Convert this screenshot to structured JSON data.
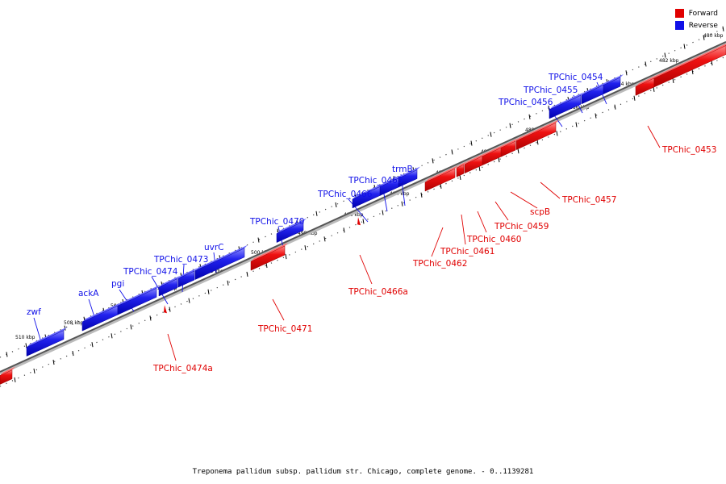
{
  "legend": {
    "forward_label": "Forward",
    "reverse_label": "Reverse",
    "forward_color": "#e00000",
    "reverse_color": "#1010e8"
  },
  "caption": "Treponema pallidum subsp. pallidum str. Chicago, complete genome. - 0..1139281",
  "scale": {
    "unit": "kbp",
    "ticks": [
      "480 kbp",
      "482 kbp",
      "484 kbp",
      "486 kbp",
      "488 kbp",
      "490 kbp",
      "492 kbp",
      "494 kbp",
      "496 kbp",
      "498 kbp",
      "500 kbp",
      "502 kbp",
      "504 kbp",
      "506 kbp",
      "508 kbp",
      "510 kbp"
    ]
  },
  "genes": {
    "reverse": [
      "TPChic_0454",
      "TPChic_0455",
      "TPChic_0456",
      "trmB",
      "TPChic_0465",
      "TPChic_0466",
      "TPChic_0470",
      "uvrC",
      "TPChic_0473",
      "TPChic_0474",
      "pgi",
      "ackA",
      "zwf"
    ],
    "forward": [
      "TPChic_0453",
      "TPChic_0457",
      "scpB",
      "TPChic_0459",
      "TPChic_0460",
      "TPChic_0461",
      "TPChic_0462",
      "TPChic_0466a",
      "TPChic_0471",
      "TPChic_0474a"
    ]
  }
}
